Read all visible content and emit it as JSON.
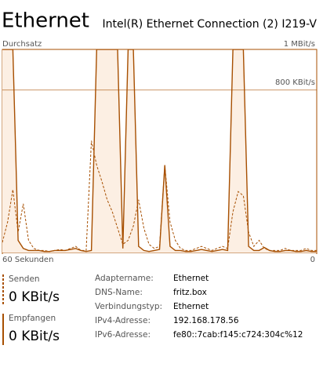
{
  "header": {
    "title": "Ethernet",
    "adapter": "Intel(R) Ethernet Connection (2) I219-V"
  },
  "chart_data": {
    "type": "line",
    "ylabel": "Durchsatz",
    "x": [
      60,
      59,
      58,
      57,
      56,
      55,
      54,
      53,
      52,
      51,
      50,
      49,
      48,
      47,
      46,
      45,
      44,
      43,
      42,
      41,
      40,
      39,
      38,
      37,
      36,
      35,
      34,
      33,
      32,
      31,
      30,
      29,
      28,
      27,
      26,
      25,
      24,
      23,
      22,
      21,
      20,
      19,
      18,
      17,
      16,
      15,
      14,
      13,
      12,
      11,
      10,
      9,
      8,
      7,
      6,
      5,
      4,
      3,
      2,
      1,
      0
    ],
    "xlim": [
      60,
      0
    ],
    "xticks": [
      {
        "value": 60,
        "label": "60 Sekunden"
      },
      0
    ],
    "ylim": [
      0,
      1000
    ],
    "yticks": [
      {
        "value": 1000,
        "label": "1 MBit/s"
      },
      {
        "value": 800,
        "label": "800 KBit/s"
      }
    ],
    "series": [
      {
        "name": "Empfangen",
        "color": "#a74f01",
        "style": "solid",
        "fill": "#fcefe3",
        "values": [
          1000,
          1000,
          1000,
          60,
          20,
          10,
          10,
          10,
          5,
          5,
          10,
          10,
          10,
          15,
          20,
          10,
          5,
          10,
          1000,
          1000,
          1000,
          1000,
          1000,
          20,
          1000,
          1000,
          30,
          10,
          5,
          10,
          15,
          430,
          30,
          10,
          10,
          5,
          5,
          10,
          15,
          10,
          5,
          10,
          15,
          10,
          1000,
          1000,
          1000,
          30,
          10,
          10,
          25,
          10,
          5,
          5,
          10,
          10,
          5,
          5,
          10,
          5,
          5
        ]
      },
      {
        "name": "Senden",
        "color": "#a74f01",
        "style": "dashed",
        "values": [
          50,
          150,
          310,
          100,
          240,
          60,
          20,
          10,
          10,
          5,
          10,
          15,
          10,
          20,
          30,
          10,
          10,
          550,
          430,
          350,
          260,
          200,
          120,
          40,
          60,
          130,
          260,
          120,
          40,
          20,
          30,
          430,
          150,
          60,
          20,
          10,
          10,
          20,
          30,
          20,
          10,
          20,
          30,
          20,
          200,
          300,
          280,
          100,
          30,
          60,
          20,
          10,
          10,
          10,
          20,
          10,
          10,
          10,
          20,
          10,
          10
        ]
      }
    ]
  },
  "stats": [
    {
      "label": "Senden",
      "value": "0 KBit/s"
    },
    {
      "label": "Empfangen",
      "value": "0 KBit/s"
    }
  ],
  "details": [
    [
      "Adaptername:",
      "Ethernet"
    ],
    [
      "DNS-Name:",
      "fritz.box"
    ],
    [
      "Verbindungstyp:",
      "Ethernet"
    ],
    [
      "IPv4-Adresse:",
      "192.168.178.56"
    ],
    [
      "IPv6-Adresse:",
      "fe80::7cab:f145:c724:304c%12"
    ]
  ]
}
